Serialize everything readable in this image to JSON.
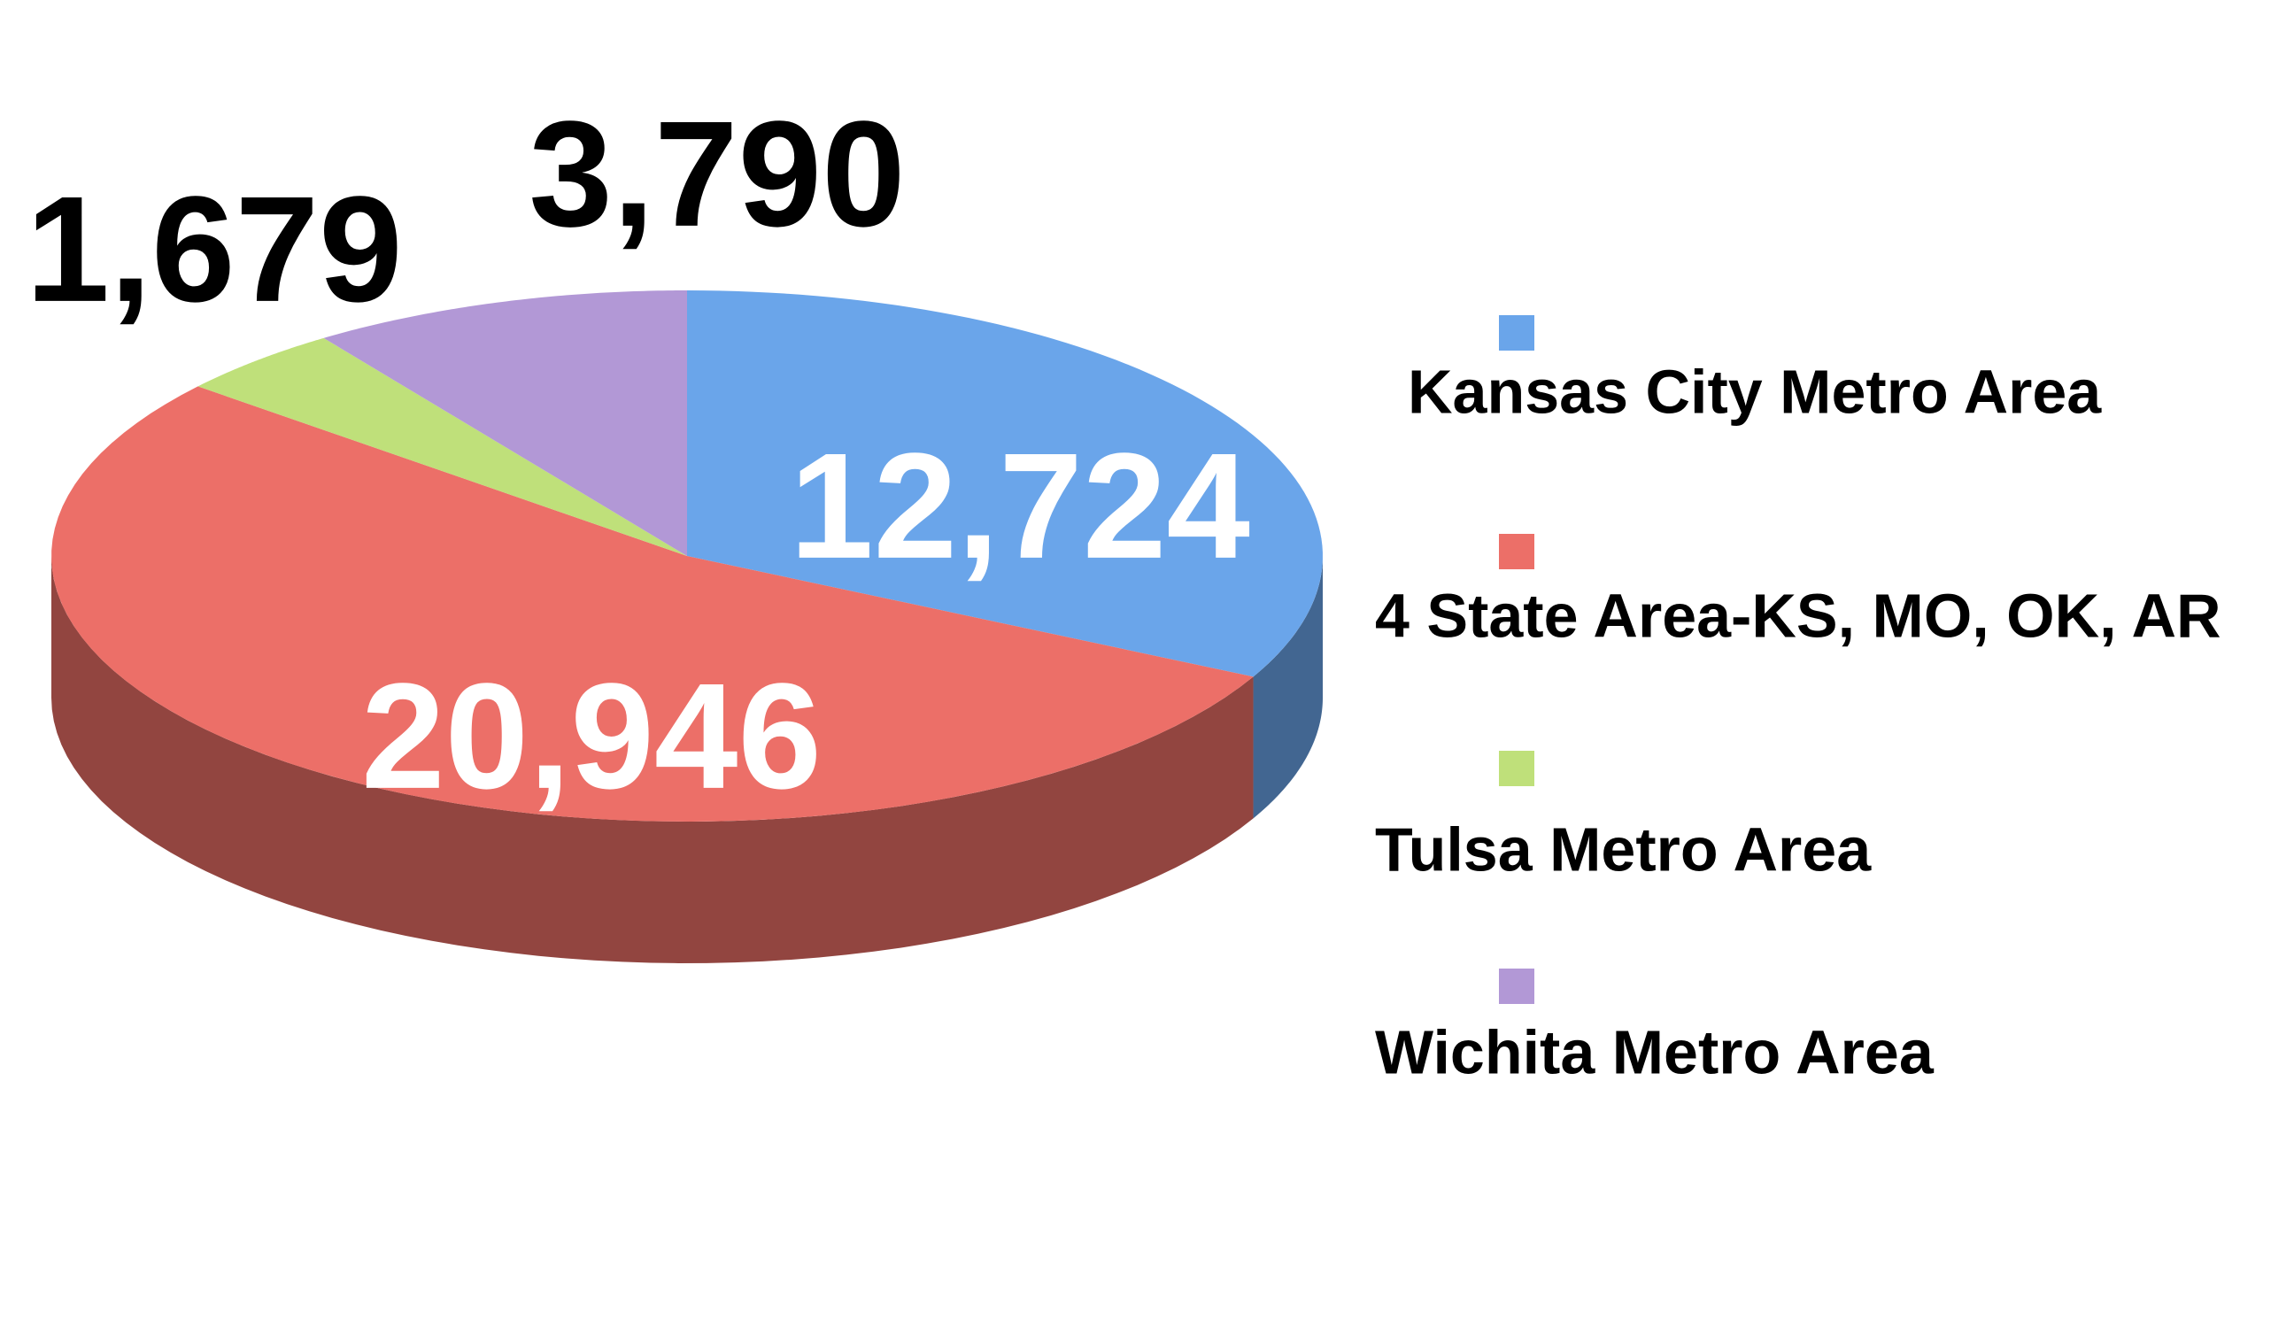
{
  "chart_data": {
    "type": "pie",
    "categories": [
      "Kansas City Metro Area",
      "4 State Area-KS, MO, OK, AR",
      "Tulsa Metro Area",
      "Wichita Metro Area"
    ],
    "values": [
      12724,
      20946,
      1679,
      3790
    ],
    "value_labels": [
      "12,724",
      "20,946",
      "1,679",
      "3,790"
    ],
    "colors": [
      "#6aa5ea",
      "#ec6f68",
      "#bfe07a",
      "#b298d6"
    ],
    "legend": "right"
  }
}
